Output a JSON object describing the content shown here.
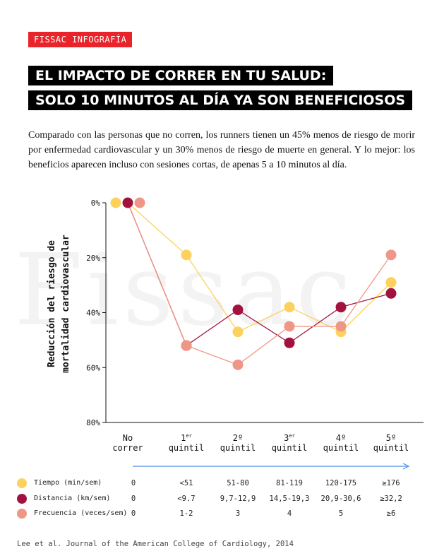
{
  "header": {
    "tag": "FISSAC INFOGRAFÍA",
    "title_line1": "EL IMPACTO DE CORRER EN TU SALUD:",
    "title_line2": "SOLO 10 MINUTOS AL DÍA YA SON BENEFICIOSOS",
    "intro": "Comparado con las personas que no corren, los runners tienen un 45% menos de riesgo de morir por enfermedad cardiovascular y un 30% menos de riesgo de muerte en general. Y lo mejor: los beneficios aparecen incluso con sesiones cortas, de apenas 5 a 10 minutos al día."
  },
  "watermark": "Fissac",
  "chart_data": {
    "type": "line",
    "ylabel_line1": "Reducción del riesgo de",
    "ylabel_line2": "mortalidad cardiovascular",
    "ylim": [
      0,
      80
    ],
    "y_inverted": true,
    "yticks": [
      "0%",
      "20%",
      "40%",
      "60%",
      "80%"
    ],
    "ytick_values": [
      0,
      20,
      40,
      60,
      80
    ],
    "categories": [
      {
        "line1": "No",
        "line2": "correr",
        "sup": ""
      },
      {
        "line1": "1",
        "line2": "quintil",
        "sup": "er"
      },
      {
        "line1": "2º",
        "line2": "quintil",
        "sup": ""
      },
      {
        "line1": "3",
        "line2": "quintil",
        "sup": "er"
      },
      {
        "line1": "4º",
        "line2": "quintil",
        "sup": ""
      },
      {
        "line1": "5º",
        "line2": "quintil",
        "sup": ""
      }
    ],
    "series": [
      {
        "name": "Tiempo (min/sem)",
        "color": "#fdd15e",
        "values": [
          0,
          19,
          47,
          38,
          47,
          29
        ]
      },
      {
        "name": "Distancia (km/sem)",
        "color": "#a3123f",
        "values": [
          0,
          52,
          39,
          51,
          38,
          33
        ]
      },
      {
        "name": "Frecuencia (veces/sem)",
        "color": "#ef9787",
        "values": [
          0,
          52,
          59,
          45,
          45,
          19
        ]
      }
    ]
  },
  "legend_table": [
    {
      "label": "Tiempo (min/sem)",
      "values": [
        "0",
        "<51",
        "51-80",
        "81-119",
        "120-175",
        "≥176"
      ]
    },
    {
      "label": "Distancia (km/sem)",
      "values": [
        "0",
        "<9.7",
        "9,7-12,9",
        "14,5-19,3",
        "20,9-30,6",
        "≥32,2"
      ]
    },
    {
      "label": "Frecuencia (veces/sem)",
      "values": [
        "0",
        "1-2",
        "3",
        "4",
        "5",
        "≥6"
      ]
    }
  ],
  "arrow_color": "#4a8fe7",
  "source": "Lee et al. Journal of the American College of Cardiology, 2014"
}
